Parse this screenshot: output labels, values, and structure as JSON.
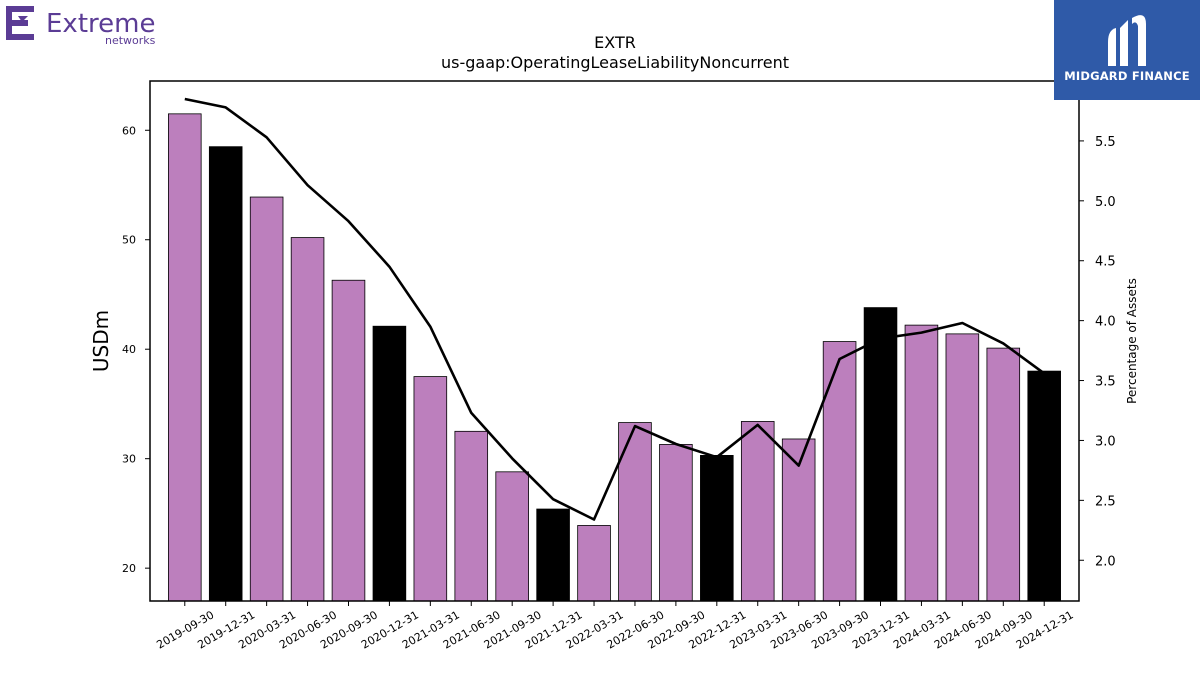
{
  "logos": {
    "company_name": "Extreme",
    "company_suffix": "networks",
    "publisher": "MIDGARD FINANCE"
  },
  "colors": {
    "bar_default": "#bc7fbd",
    "bar_q4": "#000000",
    "line": "#000000",
    "logo_purple": "#5b3c95",
    "badge_blue": "#2f5aa8"
  },
  "chart_data": {
    "type": "bar",
    "title": "EXTR",
    "subtitle": "us-gaap:OperatingLeaseLiabilityNoncurrent",
    "ylabel": "USDm",
    "y2label": "Percentage of Assets",
    "ylim": [
      17,
      64.5
    ],
    "y2lim": [
      1.66,
      6.0
    ],
    "yticks": [
      20,
      30,
      40,
      50,
      60
    ],
    "y2ticks": [
      "2.0",
      "2.5",
      "3.0",
      "3.5",
      "4.0",
      "4.5",
      "5.0",
      "5.5"
    ],
    "categories": [
      "2019-09-30",
      "2019-12-31",
      "2020-03-31",
      "2020-06-30",
      "2020-09-30",
      "2020-12-31",
      "2021-03-31",
      "2021-06-30",
      "2021-09-30",
      "2021-12-31",
      "2022-03-31",
      "2022-06-30",
      "2022-09-30",
      "2022-12-31",
      "2023-03-31",
      "2023-06-30",
      "2023-09-30",
      "2023-12-31",
      "2024-03-31",
      "2024-06-30",
      "2024-09-30",
      "2024-12-31"
    ],
    "series": [
      {
        "type": "bar",
        "values": [
          61.5,
          58.5,
          53.9,
          50.2,
          46.3,
          42.1,
          37.5,
          32.5,
          28.8,
          25.4,
          23.9,
          33.3,
          31.3,
          30.3,
          33.4,
          31.8,
          40.7,
          43.8,
          42.2,
          41.4,
          40.1,
          38.0
        ]
      },
      {
        "type": "line",
        "axis": "secondary",
        "values": [
          5.85,
          5.78,
          5.53,
          5.13,
          4.83,
          4.45,
          3.95,
          3.23,
          2.85,
          2.51,
          2.34,
          3.12,
          2.97,
          2.86,
          3.13,
          2.79,
          3.68,
          3.85,
          3.9,
          3.98,
          3.81,
          3.56
        ]
      }
    ],
    "highlight_categories": [
      "2019-12-31",
      "2020-12-31",
      "2021-12-31",
      "2022-12-31",
      "2023-12-31",
      "2024-12-31"
    ],
    "grid": false,
    "legend": "none"
  }
}
